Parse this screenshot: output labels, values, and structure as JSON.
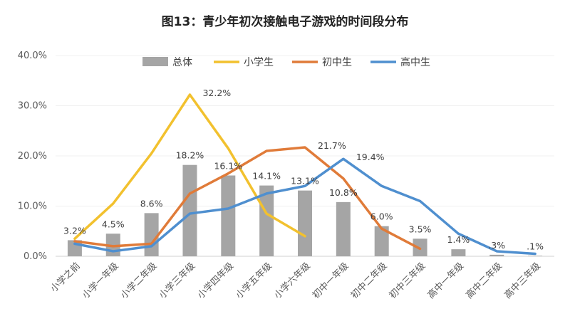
{
  "chart_data": {
    "type": "bar",
    "title": "图13：青少年初次接触电子游戏的时间段分布",
    "categories": [
      "小学之前",
      "小学一年级",
      "小学二年级",
      "小学三年级",
      "小学四年级",
      "小学五年级",
      "小学六年级",
      "初中一年级",
      "初中二年级",
      "初中三年级",
      "高中一年级",
      "高中二年级",
      "高中三年级"
    ],
    "ylim": [
      0,
      40
    ],
    "yticks": [
      "0.0%",
      "10.0%",
      "20.0%",
      "30.0%",
      "40.0%"
    ],
    "legend_position": "top",
    "series": [
      {
        "name": "总体",
        "type": "bar",
        "color": "#A5A5A5",
        "values": [
          3.2,
          4.5,
          8.6,
          18.2,
          16.1,
          14.1,
          13.1,
          10.8,
          6.0,
          3.5,
          1.4,
          0.3,
          0.1
        ],
        "labels": [
          "3.2%",
          "4.5%",
          "8.6%",
          "18.2%",
          "16.1%",
          "14.1%",
          "13.1%",
          "10.8%",
          "6.0%",
          "3.5%",
          "1.4%",
          ".3%",
          ".1%"
        ]
      },
      {
        "name": "小学生",
        "type": "line",
        "color": "#F2C12E",
        "values": [
          3.5,
          10.5,
          20.5,
          32.2,
          21.5,
          8.5,
          4.0,
          null,
          null,
          null,
          null,
          null,
          null
        ],
        "peak_label": "32.2%"
      },
      {
        "name": "初中生",
        "type": "line",
        "color": "#E07B39",
        "values": [
          3.0,
          2.0,
          2.5,
          12.5,
          16.5,
          21.0,
          21.7,
          15.5,
          5.5,
          1.5,
          null,
          null,
          null
        ],
        "peak_label": "21.7%"
      },
      {
        "name": "高中生",
        "type": "line",
        "color": "#4F8FCF",
        "values": [
          2.5,
          1.0,
          2.0,
          8.5,
          9.5,
          12.5,
          14.0,
          19.4,
          14.0,
          11.0,
          4.5,
          1.0,
          0.5
        ],
        "peak_label": "19.4%"
      }
    ]
  }
}
